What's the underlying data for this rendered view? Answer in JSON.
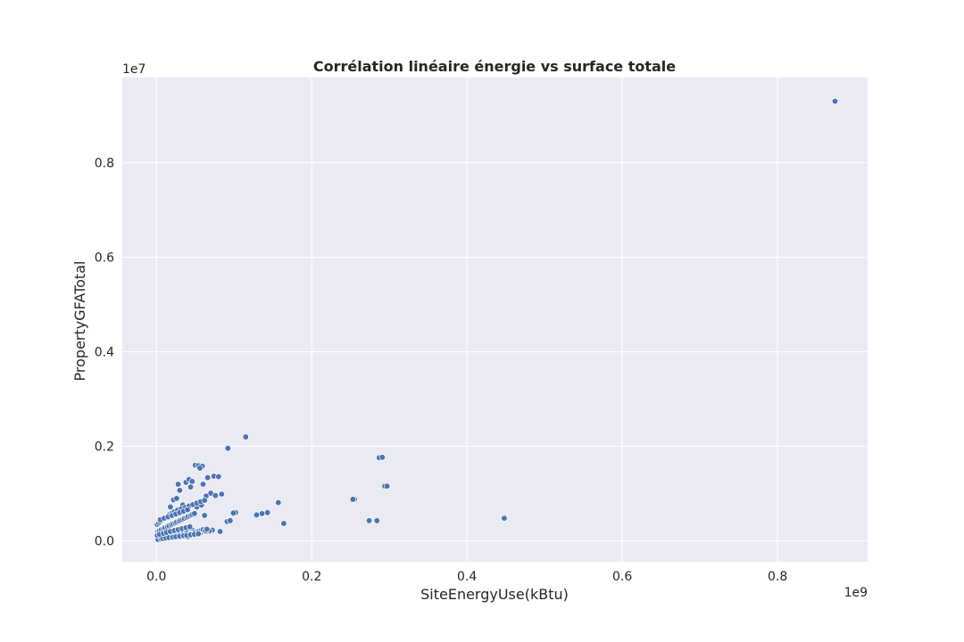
{
  "chart_data": {
    "type": "scatter",
    "title": "Corrélation linéaire énergie vs surface totale",
    "xlabel": "SiteEnergyUse(kBtu)",
    "ylabel": "PropertyGFATotal",
    "x_offset_label": "1e9",
    "y_offset_label": "1e7",
    "xlim": [
      -44000000,
      916000000
    ],
    "ylim": [
      -440000,
      9800000
    ],
    "x_ticks": [
      0,
      200000000,
      400000000,
      600000000,
      800000000
    ],
    "x_tick_labels": [
      "0.0",
      "0.2",
      "0.4",
      "0.6",
      "0.8"
    ],
    "y_ticks": [
      0,
      2000000,
      4000000,
      6000000,
      8000000
    ],
    "y_tick_labels": [
      "0.0",
      "0.2",
      "0.4",
      "0.6",
      "0.8"
    ],
    "grid": true,
    "background": "#eaeaf2",
    "point_color": "#4c72b0",
    "x": [
      874000000,
      115000000,
      92000000,
      287000000,
      291000000,
      294000000,
      297000000,
      255000000,
      253000000,
      157000000,
      164000000,
      143000000,
      136000000,
      129000000,
      448000000,
      284000000,
      274000000,
      50000000,
      54000000,
      59000000,
      56000000,
      74000000,
      80000000,
      84000000,
      70000000,
      64000000,
      60000000,
      66000000,
      28000000,
      30000000,
      38000000,
      42000000,
      46000000,
      44000000,
      22000000,
      26000000,
      18000000,
      34000000,
      52000000,
      58000000,
      62000000,
      102000000,
      99000000,
      91000000,
      95000000,
      82000000,
      72000000,
      68000000,
      76000000,
      64000000,
      57000000,
      47000000,
      40000000,
      3000000,
      5000000,
      8000000,
      10000000,
      12000000,
      15000000,
      18000000,
      20000000,
      22000000,
      25000000,
      28000000,
      30000000,
      33000000,
      35000000,
      38000000,
      40000000,
      43000000,
      45000000,
      48000000,
      50000000,
      53000000,
      55000000,
      58000000,
      60000000,
      63000000,
      65000000,
      2000000,
      4000000,
      6000000,
      9000000,
      11000000,
      14000000,
      16000000,
      19000000,
      21000000,
      24000000,
      26000000,
      29000000,
      31000000,
      34000000,
      36000000,
      39000000,
      41000000,
      44000000,
      46000000,
      49000000,
      1000000,
      3000000,
      5000000,
      7000000,
      10000000,
      13000000,
      15000000,
      17000000,
      20000000,
      23000000,
      27000000,
      32000000,
      37000000,
      42000000,
      47000000,
      52000000,
      57000000,
      62000000,
      2000000,
      6000000,
      8000000,
      12000000,
      16000000,
      21000000,
      25000000,
      30000000,
      35000000,
      39000000,
      44000000,
      49000000,
      54000000,
      1000000,
      4000000,
      9000000,
      13000000,
      18000000,
      23000000,
      28000000,
      33000000,
      38000000,
      43000000,
      5000000,
      10000000,
      15000000,
      20000000,
      25000000,
      30000000,
      35000000,
      40000000
    ],
    "y": [
      9300000,
      2200000,
      1960000,
      1760000,
      1770000,
      1160000,
      1160000,
      880000,
      880000,
      810000,
      370000,
      600000,
      580000,
      550000,
      480000,
      430000,
      430000,
      1600000,
      1590000,
      1580000,
      1540000,
      1370000,
      1360000,
      990000,
      1010000,
      950000,
      1200000,
      1340000,
      1200000,
      1070000,
      1240000,
      1300000,
      1260000,
      1140000,
      870000,
      900000,
      720000,
      760000,
      720000,
      760000,
      540000,
      600000,
      590000,
      410000,
      430000,
      200000,
      230000,
      210000,
      960000,
      200000,
      180000,
      220000,
      90000,
      50000,
      60000,
      70000,
      80000,
      90000,
      100000,
      110000,
      100000,
      120000,
      130000,
      140000,
      150000,
      130000,
      160000,
      170000,
      180000,
      150000,
      160000,
      170000,
      190000,
      200000,
      210000,
      230000,
      240000,
      220000,
      250000,
      200000,
      220000,
      240000,
      260000,
      280000,
      300000,
      320000,
      340000,
      360000,
      380000,
      400000,
      420000,
      440000,
      460000,
      480000,
      500000,
      520000,
      540000,
      560000,
      580000,
      350000,
      380000,
      410000,
      440000,
      470000,
      500000,
      530000,
      560000,
      590000,
      620000,
      650000,
      680000,
      710000,
      740000,
      770000,
      800000,
      830000,
      860000,
      30000,
      40000,
      50000,
      60000,
      70000,
      80000,
      90000,
      100000,
      110000,
      120000,
      130000,
      140000,
      150000,
      120000,
      140000,
      160000,
      180000,
      200000,
      220000,
      240000,
      260000,
      280000,
      300000,
      450000,
      480000,
      510000,
      540000,
      570000,
      600000,
      630000,
      660000
    ]
  }
}
